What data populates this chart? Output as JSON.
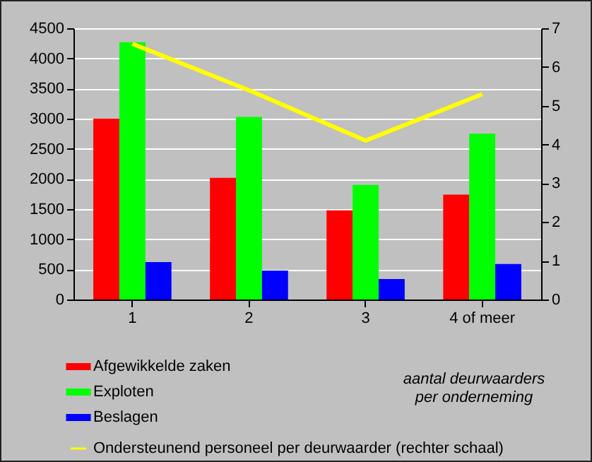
{
  "chart_data": {
    "type": "bar",
    "xlabel": "aantal deurwaarders per onderneming",
    "categories": [
      "1",
      "2",
      "3",
      "4 of meer"
    ],
    "series": [
      {
        "name": "Afgewikkelde zaken",
        "color": "#ff0000",
        "values": [
          3000,
          2020,
          1480,
          1740
        ]
      },
      {
        "name": "Exploten",
        "color": "#00ff00",
        "values": [
          4270,
          3030,
          1900,
          2750
        ]
      },
      {
        "name": "Beslagen",
        "color": "#0000ff",
        "values": [
          620,
          480,
          340,
          590
        ]
      },
      {
        "name": "Ondersteunend personeel per deurwaarder (rechter schaal)",
        "color": "#ffff00",
        "type": "line",
        "axis": "y2",
        "values": [
          6.6,
          5.4,
          4.1,
          5.3
        ]
      }
    ],
    "ylim": [
      0,
      4500
    ],
    "yticks": [
      0,
      500,
      1000,
      1500,
      2000,
      2500,
      3000,
      3500,
      4000,
      4500
    ],
    "y2lim": [
      0,
      7
    ],
    "y2ticks": [
      0,
      1,
      2,
      3,
      4,
      5,
      6,
      7
    ],
    "grid": "y",
    "legend": "bottom"
  }
}
